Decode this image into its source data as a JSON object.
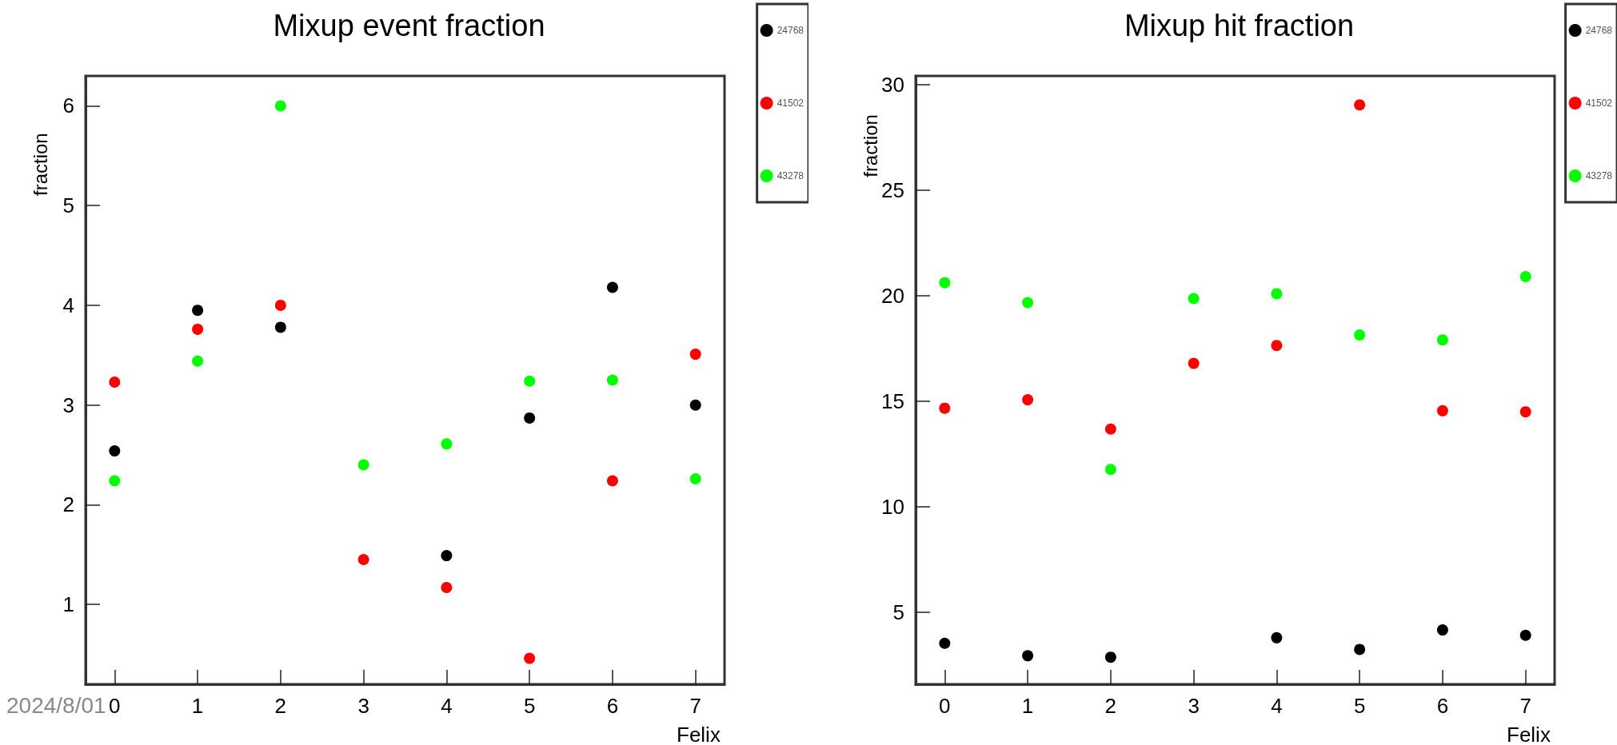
{
  "chart_data": [
    {
      "type": "scatter",
      "title": "Mixup event fraction",
      "xlabel": "Felix",
      "ylabel": "fraction",
      "x": [
        0,
        1,
        2,
        3,
        4,
        5,
        6,
        7
      ],
      "xlim": [
        -0.35,
        7.35
      ],
      "xticks": [
        0,
        1,
        2,
        3,
        4,
        5,
        6,
        7
      ],
      "ylim": [
        0.2,
        6.3
      ],
      "yticks": [
        1,
        2,
        3,
        4,
        5,
        6
      ],
      "grid": false,
      "legend": "top right",
      "marker": "circle",
      "annotations": [
        "2024/8/01"
      ],
      "series": [
        {
          "name": "24768",
          "color": "#000000",
          "values": [
            2.54,
            3.95,
            3.78,
            null,
            1.49,
            2.87,
            4.18,
            3.0
          ]
        },
        {
          "name": "41502",
          "color": "#ff0000",
          "values": [
            3.23,
            3.76,
            4.0,
            1.45,
            1.17,
            0.46,
            2.24,
            3.51
          ]
        },
        {
          "name": "43278",
          "color": "#00ff00",
          "values": [
            2.24,
            3.44,
            6.0,
            2.4,
            2.61,
            3.24,
            3.25,
            2.26
          ]
        }
      ]
    },
    {
      "type": "scatter",
      "title": "Mixup hit fraction",
      "xlabel": "Felix",
      "ylabel": "fraction",
      "x": [
        0,
        1,
        2,
        3,
        4,
        5,
        6,
        7
      ],
      "xlim": [
        -0.35,
        7.35
      ],
      "xticks": [
        0,
        1,
        2,
        3,
        4,
        5,
        6,
        7
      ],
      "ylim": [
        1.6,
        30.4
      ],
      "yticks": [
        5,
        10,
        15,
        20,
        25,
        30
      ],
      "grid": false,
      "legend": "top right",
      "marker": "circle",
      "series": [
        {
          "name": "24768",
          "color": "#000000",
          "values": [
            3.54,
            2.95,
            2.88,
            null,
            3.8,
            3.25,
            4.17,
            3.92
          ]
        },
        {
          "name": "41502",
          "color": "#ff0000",
          "values": [
            14.67,
            15.07,
            13.68,
            16.79,
            17.64,
            29.03,
            14.55,
            14.5
          ]
        },
        {
          "name": "43278",
          "color": "#00ff00",
          "values": [
            20.61,
            19.67,
            11.77,
            19.86,
            20.09,
            18.14,
            17.9,
            20.9
          ]
        }
      ]
    }
  ]
}
